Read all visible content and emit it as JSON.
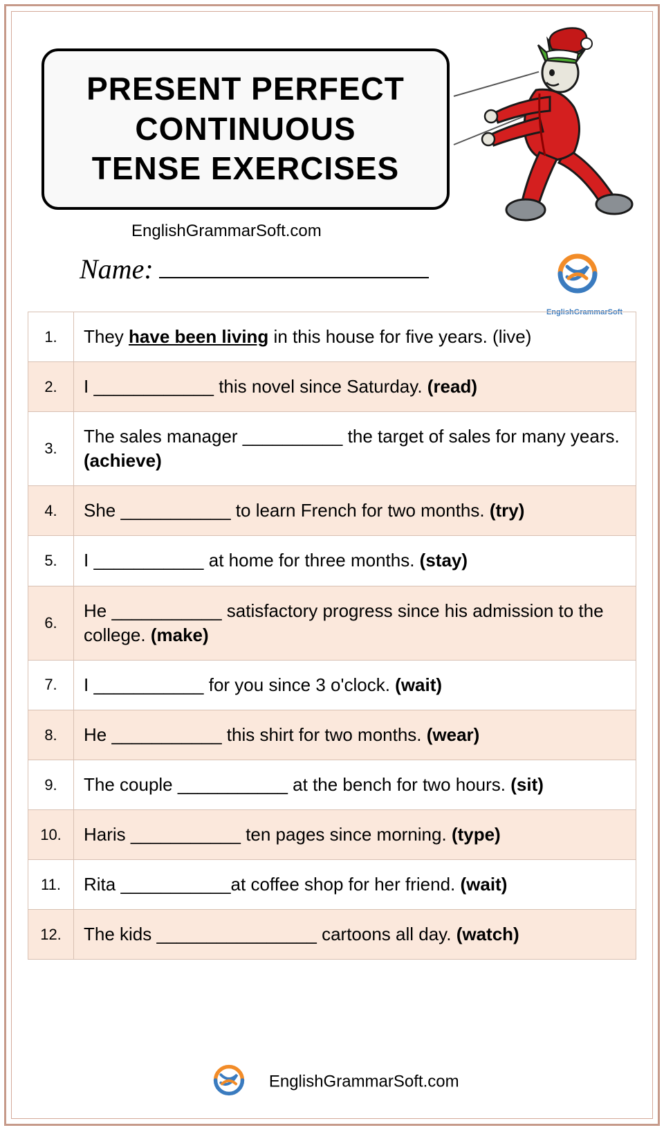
{
  "page": {
    "outer_border_color": "#c69a8a",
    "inner_border_color": "#d4a898",
    "background_color": "#ffffff"
  },
  "title": {
    "line1": "PRESENT PERFECT",
    "line2": "CONTINUOUS",
    "line3": "TENSE EXERCISES",
    "box_bg": "#f9f9f9",
    "box_border": "#000000",
    "font_size": 46
  },
  "subtitle": "EnglishGrammarSoft.com",
  "name_label": "Name:",
  "logo": {
    "text": "EnglishGrammarSoft",
    "text_small": "EnglishGrammarSoft",
    "arc1_color": "#f28c28",
    "arc2_color": "#3a7bbf"
  },
  "character": {
    "suit_color": "#d41f1f",
    "hair_color": "#4caf2f",
    "hat_color": "#c41818",
    "hat_trim": "#ffffff",
    "shoe_color": "#8a8f94",
    "skin_color": "#e8e6dc",
    "outline_color": "#1a1a1a"
  },
  "table": {
    "border_color": "#d8c0b2",
    "alt_row_bg": "#fbe8dc",
    "font_size": 26,
    "num_font_size": 22,
    "num_col_width": 66
  },
  "rows": [
    {
      "n": "1.",
      "pre": "They ",
      "answer": "have been living",
      "post": " in this house for five years. (live)",
      "alt": false,
      "has_answer": true,
      "hint_bold": false
    },
    {
      "n": "2.",
      "pre": "I ",
      "blank": "____________",
      "post": " this novel since Saturday. ",
      "hint": "(read)",
      "alt": true
    },
    {
      "n": "3.",
      "pre": "The sales manager ",
      "blank": "__________",
      "post": " the target of sales for many years. ",
      "hint": "(achieve)",
      "alt": false
    },
    {
      "n": "4.",
      "pre": "She ",
      "blank": "___________",
      "post": " to learn French for two months. ",
      "hint": "(try)",
      "alt": true
    },
    {
      "n": "5.",
      "pre": "I ",
      "blank": "___________",
      "post": " at home for three months. ",
      "hint": "(stay)",
      "alt": false
    },
    {
      "n": "6.",
      "pre": "He ",
      "blank": "___________",
      "post": " satisfactory progress since his admission to the college. ",
      "hint": "(make)",
      "alt": true
    },
    {
      "n": "7.",
      "pre": "I ",
      "blank": "___________",
      "post": " for you since 3 o'clock. ",
      "hint": "(wait)",
      "alt": false
    },
    {
      "n": "8.",
      "pre": "He ",
      "blank": "___________",
      "post": " this shirt for two months. ",
      "hint": "(wear)",
      "alt": true
    },
    {
      "n": "9.",
      "pre": "The couple ",
      "blank": "___________",
      "post": " at the bench for two hours. ",
      "hint": "(sit)",
      "alt": false
    },
    {
      "n": "10.",
      "pre": "Haris ",
      "blank": "___________",
      "post": " ten pages since morning. ",
      "hint": "(type)",
      "alt": true
    },
    {
      "n": "11.",
      "pre": "Rita ",
      "blank": "___________",
      "post": "at coffee shop for her friend. ",
      "hint": "(wait)",
      "alt": false
    },
    {
      "n": "12.",
      "pre": "The kids ",
      "blank": "________________",
      "post": " cartoons all day. ",
      "hint": "(watch)",
      "alt": true
    }
  ],
  "footer_text": "EnglishGrammarSoft.com"
}
